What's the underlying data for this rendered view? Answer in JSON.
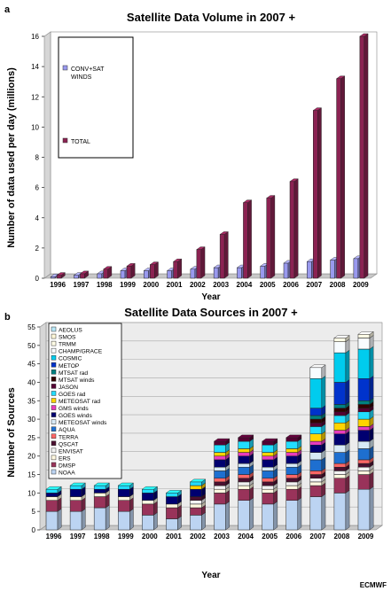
{
  "credit": "ECMWF",
  "colors": {
    "conv": "#9999ee",
    "total": "#8b2252",
    "floor": "#c8c8c8",
    "wall": "#ececec"
  },
  "chart_data": [
    {
      "type": "bar",
      "panel_label": "a",
      "title": "Satellite Data Volume in 2007 +",
      "xlabel": "Year",
      "ylabel": "Number of data used per day (millions)",
      "ylim": [
        0,
        16
      ],
      "yticks": [
        "0",
        "2",
        "4",
        "6",
        "8",
        "10",
        "12",
        "14",
        "16"
      ],
      "categories": [
        "1996",
        "1997",
        "1998",
        "1999",
        "2000",
        "2001",
        "2002",
        "2003",
        "2004",
        "2005",
        "2006",
        "2007",
        "2008",
        "2009"
      ],
      "legend_placement": "top-left",
      "grid": false,
      "series": [
        {
          "name": "CONV+SAT WINDS",
          "color": "#9999ee",
          "values": [
            0.1,
            0.2,
            0.3,
            0.5,
            0.5,
            0.5,
            0.6,
            0.7,
            0.7,
            0.8,
            1.0,
            1.1,
            1.2,
            1.3
          ]
        },
        {
          "name": "TOTAL",
          "color": "#8b2252",
          "values": [
            0.2,
            0.3,
            0.6,
            0.8,
            0.9,
            1.1,
            1.9,
            2.9,
            5.0,
            5.3,
            6.4,
            11.1,
            13.2,
            16.0
          ]
        }
      ]
    },
    {
      "type": "bar",
      "stacked": true,
      "panel_label": "b",
      "title": "Satellite Data Sources in 2007 +",
      "xlabel": "Year",
      "ylabel": "Number of Sources",
      "ylim": [
        0,
        55
      ],
      "yticks": [
        "0",
        "5",
        "10",
        "15",
        "20",
        "25",
        "30",
        "35",
        "40",
        "45",
        "50",
        "55"
      ],
      "categories": [
        "1996",
        "1997",
        "1998",
        "1999",
        "2000",
        "2001",
        "2002",
        "2003",
        "2004",
        "2005",
        "2006",
        "2007",
        "2008",
        "2009"
      ],
      "legend_placement": "top-left",
      "grid": true,
      "series": [
        {
          "name": "NOAA",
          "color": "#bcd4f2",
          "values": [
            5,
            5,
            6,
            5,
            4,
            3,
            4,
            7,
            8,
            7,
            8,
            9,
            10,
            11
          ]
        },
        {
          "name": "DMSP",
          "color": "#99335a",
          "values": [
            3,
            3,
            3,
            3,
            3,
            3,
            2,
            3,
            3,
            3,
            3,
            3,
            4,
            4
          ]
        },
        {
          "name": "ERS",
          "color": "#fff8e0",
          "values": [
            1,
            1,
            1,
            1,
            1,
            1,
            1,
            1,
            1,
            1,
            1,
            1,
            1,
            1
          ]
        },
        {
          "name": "ENVISAT",
          "color": "#f2f2f2",
          "values": [
            0,
            0,
            0,
            0,
            0,
            0,
            1,
            1,
            1,
            1,
            1,
            1,
            1,
            1
          ]
        },
        {
          "name": "QSCAT",
          "color": "#4b0f30",
          "values": [
            0,
            0,
            0,
            0,
            0,
            0,
            1,
            1,
            1,
            1,
            1,
            1,
            1,
            1
          ]
        },
        {
          "name": "TERRA",
          "color": "#ff6666",
          "values": [
            0,
            0,
            0,
            0,
            0,
            0,
            0,
            1,
            1,
            1,
            1,
            1,
            1,
            1
          ]
        },
        {
          "name": "AQUA",
          "color": "#1e6fd0",
          "values": [
            0,
            0,
            0,
            0,
            0,
            0,
            0,
            2,
            2,
            2,
            2,
            3,
            3,
            3
          ]
        },
        {
          "name": "METEOSAT winds",
          "color": "#d8eaf6",
          "values": [
            0,
            0,
            0,
            0,
            0,
            0,
            0,
            1,
            1,
            1,
            1,
            2,
            2,
            2
          ]
        },
        {
          "name": "GOES winds",
          "color": "#000070",
          "values": [
            1,
            2,
            1,
            2,
            2,
            2,
            2,
            2,
            2,
            2,
            2,
            2,
            3,
            3
          ]
        },
        {
          "name": "GMS winds",
          "color": "#e83cbe",
          "values": [
            0,
            0,
            0,
            0,
            0,
            0,
            0,
            1,
            1,
            1,
            1,
            1,
            1,
            1
          ]
        },
        {
          "name": "METEOSAT rad",
          "color": "#ffd400",
          "values": [
            0,
            0,
            0,
            0,
            0,
            0,
            1,
            1,
            1,
            1,
            1,
            2,
            2,
            2
          ]
        },
        {
          "name": "GOES rad",
          "color": "#22ddff",
          "values": [
            1,
            1,
            1,
            1,
            1,
            1,
            1,
            2,
            2,
            2,
            2,
            2,
            2,
            2
          ]
        },
        {
          "name": "JASON",
          "color": "#550033",
          "values": [
            0,
            0,
            0,
            0,
            0,
            0,
            0,
            1,
            1,
            1,
            1,
            1,
            1,
            1
          ]
        },
        {
          "name": "MTSAT winds",
          "color": "#330000",
          "values": [
            0,
            0,
            0,
            0,
            0,
            0,
            0,
            0,
            0,
            0,
            0,
            1,
            1,
            1
          ]
        },
        {
          "name": "MTSAT rad",
          "color": "#008080",
          "values": [
            0,
            0,
            0,
            0,
            0,
            0,
            0,
            0,
            0,
            0,
            0,
            1,
            1,
            1
          ]
        },
        {
          "name": "METOP",
          "color": "#0033cc",
          "values": [
            0,
            0,
            0,
            0,
            0,
            0,
            0,
            0,
            0,
            0,
            0,
            2,
            6,
            6
          ]
        },
        {
          "name": "COSMIC",
          "color": "#00ccee",
          "values": [
            0,
            0,
            0,
            0,
            0,
            0,
            0,
            0,
            0,
            0,
            0,
            8,
            8,
            8
          ]
        },
        {
          "name": "CHAMP/GRACE",
          "color": "#f8fcff",
          "values": [
            0,
            0,
            0,
            0,
            0,
            0,
            0,
            0,
            0,
            0,
            0,
            3,
            3,
            3
          ]
        },
        {
          "name": "TRMM",
          "color": "#fffce6",
          "values": [
            0,
            0,
            0,
            0,
            0,
            0,
            0,
            0,
            0,
            0,
            0,
            0,
            1,
            1
          ]
        },
        {
          "name": "SMOS",
          "color": "#fff8d8",
          "values": [
            0,
            0,
            0,
            0,
            0,
            0,
            0,
            0,
            0,
            0,
            0,
            0,
            0,
            0
          ]
        },
        {
          "name": "AEOLUS",
          "color": "#b8e8f8",
          "values": [
            0,
            0,
            0,
            0,
            0,
            0,
            0,
            0,
            0,
            0,
            0,
            0,
            0,
            0
          ]
        }
      ]
    }
  ]
}
